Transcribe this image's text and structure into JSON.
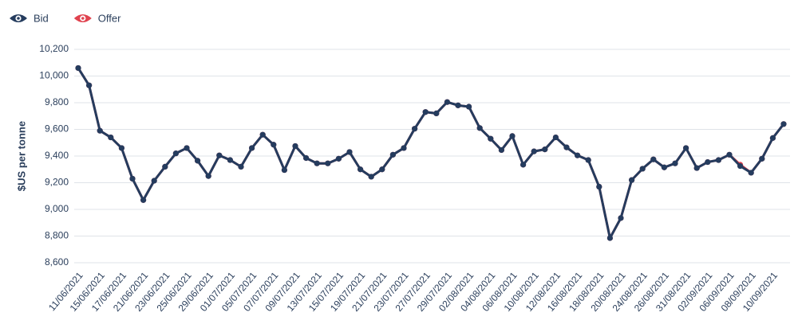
{
  "chart_data": {
    "type": "line",
    "y_label": "$US per tonne",
    "categories": [
      "11/06/2021",
      null,
      "15/06/2021",
      null,
      "17/06/2021",
      null,
      "21/06/2021",
      null,
      "23/06/2021",
      null,
      "25/06/2021",
      null,
      "29/06/2021",
      null,
      "01/07/2021",
      null,
      "05/07/2021",
      null,
      "07/07/2021",
      null,
      "09/07/2021",
      null,
      "13/07/2021",
      null,
      "15/07/2021",
      null,
      "19/07/2021",
      null,
      "21/07/2021",
      null,
      "23/07/2021",
      null,
      "27/07/2021",
      null,
      "29/07/2021",
      null,
      "02/08/2021",
      null,
      "04/08/2021",
      null,
      "06/08/2021",
      null,
      "10/08/2021",
      null,
      "12/08/2021",
      null,
      "16/08/2021",
      null,
      "18/08/2021",
      null,
      "20/08/2021",
      null,
      "24/08/2021",
      null,
      "26/08/2021",
      null,
      "31/08/2021",
      null,
      "02/09/2021",
      null,
      "06/09/2021",
      null,
      "08/09/2021",
      null,
      "10/09/2021",
      null
    ],
    "series": [
      {
        "name": "Offer",
        "color": "#e0434f",
        "values": [
          10060,
          9930,
          9590,
          9540,
          9460,
          9230,
          9070,
          9215,
          9320,
          9420,
          9460,
          9365,
          9250,
          9405,
          9370,
          9320,
          9460,
          9560,
          9485,
          9295,
          9475,
          9385,
          9345,
          9345,
          9380,
          9430,
          9300,
          9245,
          9300,
          9410,
          9460,
          9605,
          9730,
          9720,
          9805,
          9780,
          9770,
          9610,
          9530,
          9445,
          9550,
          9335,
          9435,
          9450,
          9540,
          9465,
          9405,
          9370,
          9170,
          8785,
          8935,
          9220,
          9305,
          9375,
          9315,
          9345,
          9460,
          9310,
          9355,
          9370,
          9410,
          9335,
          9275,
          9380,
          9535,
          9640
        ]
      },
      {
        "name": "Bid",
        "color": "#253c5e",
        "values": [
          10060,
          9930,
          9590,
          9540,
          9460,
          9230,
          9070,
          9215,
          9320,
          9420,
          9460,
          9365,
          9250,
          9405,
          9370,
          9320,
          9460,
          9560,
          9485,
          9295,
          9475,
          9385,
          9345,
          9345,
          9380,
          9430,
          9300,
          9245,
          9300,
          9410,
          9460,
          9605,
          9730,
          9720,
          9805,
          9780,
          9770,
          9610,
          9530,
          9445,
          9550,
          9335,
          9435,
          9450,
          9540,
          9465,
          9405,
          9370,
          9170,
          8785,
          8935,
          9220,
          9305,
          9375,
          9315,
          9345,
          9460,
          9310,
          9355,
          9370,
          9410,
          9325,
          9275,
          9380,
          9535,
          9640
        ]
      }
    ],
    "legend_order": [
      1,
      0
    ],
    "ylim": [
      8600,
      10200
    ],
    "yticks": [
      {
        "value": 8600,
        "label": "8,600"
      },
      {
        "value": 8800,
        "label": "8,800"
      },
      {
        "value": 9000,
        "label": "9,000"
      },
      {
        "value": 9200,
        "label": "9,200"
      },
      {
        "value": 9400,
        "label": "9,400"
      },
      {
        "value": 9600,
        "label": "9,600"
      },
      {
        "value": 9800,
        "label": "9,800"
      },
      {
        "value": 10000,
        "label": "10,000"
      },
      {
        "value": 10200,
        "label": "10,200"
      }
    ],
    "grid": true
  }
}
